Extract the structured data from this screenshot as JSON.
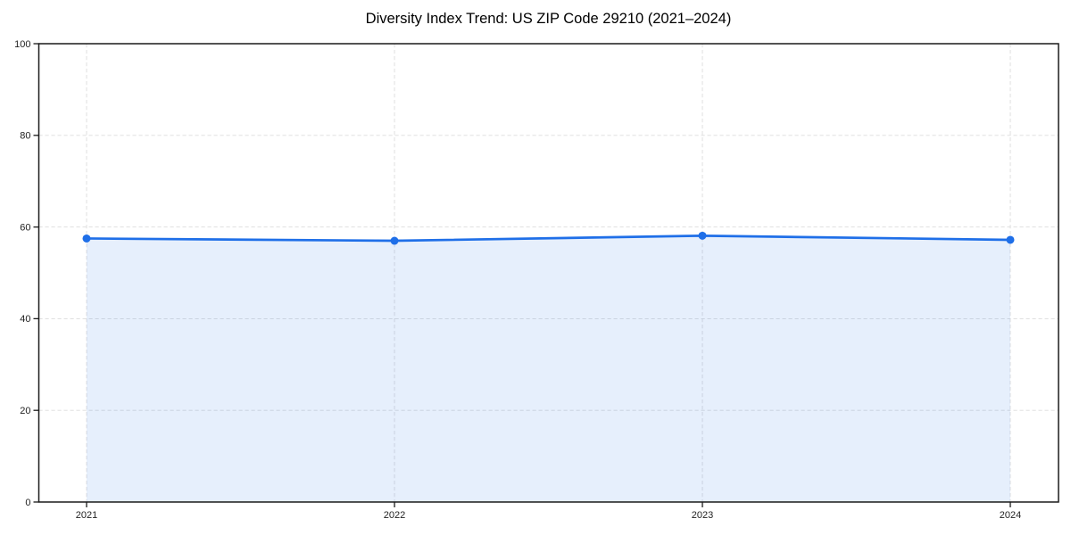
{
  "page": {
    "background": "#ffffff"
  },
  "chart_data": {
    "type": "area",
    "title": "Diversity Index Trend: US ZIP Code 29210 (2021–2024)",
    "x": [
      2021,
      2022,
      2023,
      2024
    ],
    "values": [
      57.5,
      57.0,
      58.1,
      57.2
    ],
    "xlabel": "",
    "ylabel": "",
    "ylim": [
      0,
      100
    ],
    "yticks": [
      0,
      20,
      40,
      60,
      80,
      100
    ],
    "xticks": [
      2021,
      2022,
      2023,
      2024
    ],
    "grid": "dashed, both axes",
    "legend": "none",
    "marker": "circle",
    "line_color": "#1f6fe8",
    "fill_color": "rgba(31,111,232,0.11)",
    "grid_color": "#dcdcdc",
    "axis_color": "#1a1a1a",
    "tick_color": "#222222"
  }
}
